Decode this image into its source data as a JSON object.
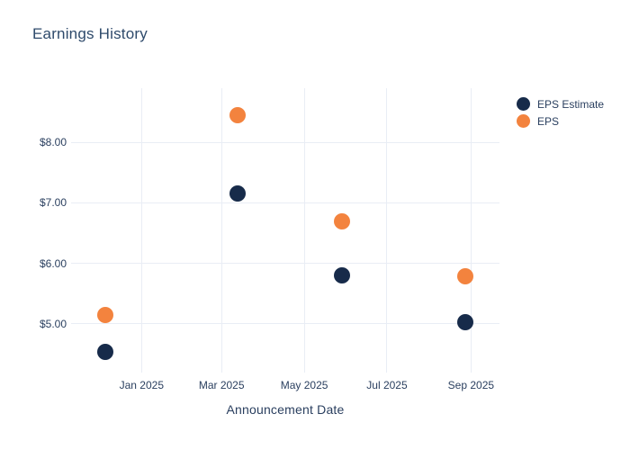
{
  "chart_data": {
    "type": "scatter",
    "title": "Earnings History",
    "xlabel": "Announcement Date",
    "ylabel": "",
    "x": [
      "2024-12-05",
      "2025-03-13",
      "2025-05-29",
      "2025-08-28"
    ],
    "series": [
      {
        "name": "EPS Estimate",
        "color": "#172b4a",
        "values": [
          4.54,
          7.15,
          5.8,
          5.02
        ]
      },
      {
        "name": "EPS",
        "color": "#f3833e",
        "values": [
          5.14,
          8.46,
          6.7,
          5.78
        ]
      }
    ],
    "x_range": [
      "2024-11-10",
      "2025-09-22"
    ],
    "y_range": [
      4.19,
      8.9
    ],
    "x_ticks": [
      {
        "value": "2025-01-01",
        "label": "Jan 2025"
      },
      {
        "value": "2025-03-01",
        "label": "Mar 2025"
      },
      {
        "value": "2025-05-01",
        "label": "May 2025"
      },
      {
        "value": "2025-07-01",
        "label": "Jul 2025"
      },
      {
        "value": "2025-09-01",
        "label": "Sep 2025"
      }
    ],
    "y_ticks": [
      {
        "value": 5,
        "label": "$5.00"
      },
      {
        "value": 6,
        "label": "$6.00"
      },
      {
        "value": 7,
        "label": "$7.00"
      },
      {
        "value": 8,
        "label": "$8.00"
      }
    ],
    "grid": true,
    "legend_position": "right"
  },
  "colors": {
    "background": "#ffffff",
    "grid": "#e9edf5",
    "text": "#2a3f5f",
    "title_text": "#2e4a6b",
    "eps_estimate": "#172b4a",
    "eps": "#f3833e"
  }
}
